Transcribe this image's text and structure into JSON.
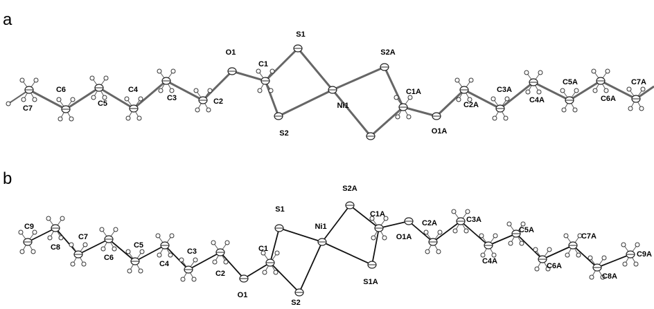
{
  "panels": [
    {
      "label": "a",
      "atoms": [
        "C7",
        "C6",
        "C5",
        "C4",
        "C3",
        "C2",
        "O1",
        "C1",
        "S1",
        "S2",
        "Ni1",
        "S2A",
        "C1A",
        "O1A",
        "C2A",
        "C3A",
        "C4A",
        "C5A",
        "C6A",
        "C7A"
      ]
    },
    {
      "label": "b",
      "atoms": [
        "C9",
        "C8",
        "C7",
        "C6",
        "C5",
        "C4",
        "C3",
        "C2",
        "O1",
        "C1",
        "S1",
        "S2",
        "Ni1",
        "S2A",
        "C1A",
        "S1A",
        "O1A",
        "C2A",
        "C3A",
        "C4A",
        "C5A",
        "C6A",
        "C7A",
        "C8A",
        "C9A"
      ]
    }
  ]
}
